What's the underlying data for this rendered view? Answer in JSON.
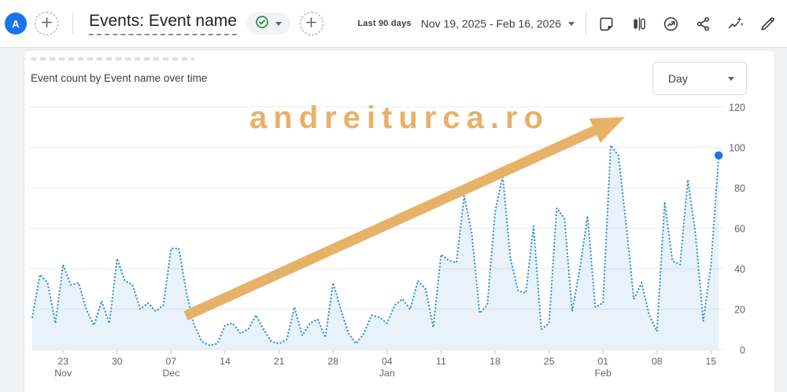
{
  "header": {
    "avatar_letter": "A",
    "report_title": "Events: Event name",
    "date_preset": "Last 90 days",
    "date_range": "Nov 19, 2025 - Feb 16, 2026",
    "toolbar_icons": [
      "note-icon",
      "comparisons-icon",
      "insights-circle-icon",
      "share-icon",
      "insights-spark-icon",
      "edit-icon"
    ]
  },
  "card": {
    "chart_title": "Event count by Event name over time",
    "granularity": {
      "value": "Day"
    }
  },
  "watermark": {
    "text": "andreiturca.ro",
    "color": "#e7b268"
  },
  "chart_data": {
    "type": "line",
    "style": "dotted-line-with-area-fill",
    "title": "Event count by Event name over time",
    "series_name": "Event count",
    "x_start": "Nov 19, 2025",
    "x_end": "Feb 16, 2026",
    "granularity": "Day",
    "ylim": [
      0,
      120
    ],
    "y_ticks": [
      0,
      20,
      40,
      60,
      80,
      100,
      120
    ],
    "y_axis_side": "right",
    "grid": "horizontal",
    "legend": "none",
    "last_point_marker": true,
    "line_color": "#3c91cd",
    "fill_color": "rgba(60,145,211,0.12)",
    "marker_color": "#1a73e8",
    "grid_color": "#eceef1",
    "axis_line_color": "#e4e7ea",
    "tick_text_color": "#5f6368",
    "tick_mark_color": "#ccd0d4",
    "x_ticks": [
      {
        "index": 4,
        "label": "23",
        "sub": "Nov"
      },
      {
        "index": 11,
        "label": "30",
        "sub": ""
      },
      {
        "index": 18,
        "label": "07",
        "sub": "Dec"
      },
      {
        "index": 25,
        "label": "14",
        "sub": ""
      },
      {
        "index": 32,
        "label": "21",
        "sub": ""
      },
      {
        "index": 39,
        "label": "28",
        "sub": ""
      },
      {
        "index": 46,
        "label": "04",
        "sub": "Jan"
      },
      {
        "index": 53,
        "label": "11",
        "sub": ""
      },
      {
        "index": 60,
        "label": "18",
        "sub": ""
      },
      {
        "index": 67,
        "label": "25",
        "sub": ""
      },
      {
        "index": 74,
        "label": "01",
        "sub": "Feb"
      },
      {
        "index": 81,
        "label": "08",
        "sub": ""
      },
      {
        "index": 88,
        "label": "15",
        "sub": ""
      }
    ],
    "dates": [
      "Nov 19",
      "Nov 20",
      "Nov 21",
      "Nov 22",
      "Nov 23",
      "Nov 24",
      "Nov 25",
      "Nov 26",
      "Nov 27",
      "Nov 28",
      "Nov 29",
      "Nov 30",
      "Dec 01",
      "Dec 02",
      "Dec 03",
      "Dec 04",
      "Dec 05",
      "Dec 06",
      "Dec 07",
      "Dec 08",
      "Dec 09",
      "Dec 10",
      "Dec 11",
      "Dec 12",
      "Dec 13",
      "Dec 14",
      "Dec 15",
      "Dec 16",
      "Dec 17",
      "Dec 18",
      "Dec 19",
      "Dec 20",
      "Dec 21",
      "Dec 22",
      "Dec 23",
      "Dec 24",
      "Dec 25",
      "Dec 26",
      "Dec 27",
      "Dec 28",
      "Dec 29",
      "Dec 30",
      "Dec 31",
      "Jan 01",
      "Jan 02",
      "Jan 03",
      "Jan 04",
      "Jan 05",
      "Jan 06",
      "Jan 07",
      "Jan 08",
      "Jan 09",
      "Jan 10",
      "Jan 11",
      "Jan 12",
      "Jan 13",
      "Jan 14",
      "Jan 15",
      "Jan 16",
      "Jan 17",
      "Jan 18",
      "Jan 19",
      "Jan 20",
      "Jan 21",
      "Jan 22",
      "Jan 23",
      "Jan 24",
      "Jan 25",
      "Jan 26",
      "Jan 27",
      "Jan 28",
      "Jan 29",
      "Jan 30",
      "Jan 31",
      "Feb 01",
      "Feb 02",
      "Feb 03",
      "Feb 04",
      "Feb 05",
      "Feb 06",
      "Feb 07",
      "Feb 08",
      "Feb 09",
      "Feb 10",
      "Feb 11",
      "Feb 12",
      "Feb 13",
      "Feb 14",
      "Feb 15",
      "Feb 16"
    ],
    "values": [
      16,
      37,
      33,
      13,
      42,
      32,
      33,
      20,
      12,
      24,
      13,
      45,
      34,
      32,
      20,
      23,
      19,
      22,
      50,
      50,
      28,
      12,
      4,
      2,
      3,
      12,
      13,
      8,
      10,
      17,
      10,
      4,
      3,
      5,
      21,
      7,
      13,
      15,
      6,
      33,
      20,
      8,
      3,
      8,
      17,
      16,
      13,
      22,
      25,
      20,
      34,
      30,
      11,
      47,
      44,
      43,
      76,
      57,
      18,
      22,
      68,
      86,
      45,
      29,
      28,
      61,
      10,
      13,
      70,
      65,
      19,
      40,
      66,
      21,
      23,
      101,
      96,
      62,
      25,
      33,
      17,
      9,
      73,
      44,
      42,
      84,
      57,
      14,
      42,
      96
    ]
  }
}
